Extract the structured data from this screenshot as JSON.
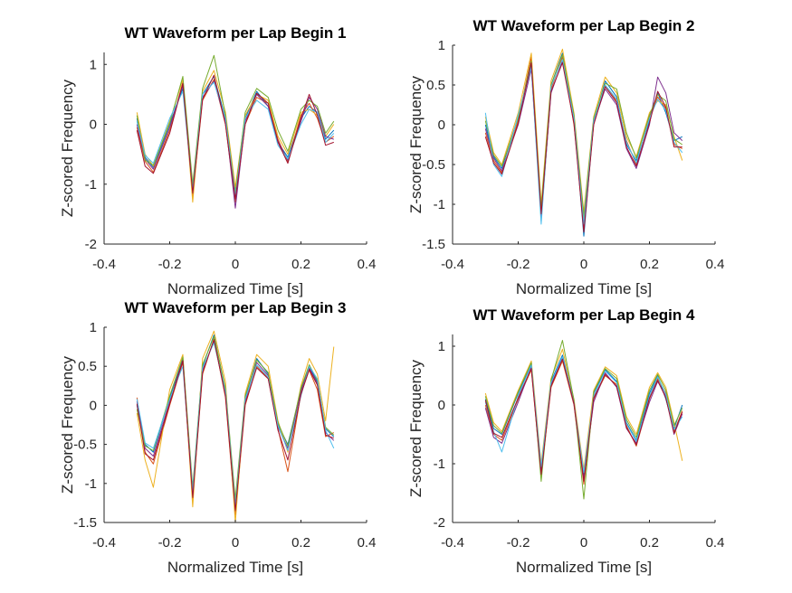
{
  "chart_data": [
    {
      "type": "line",
      "title": "WT Waveform per Lap Begin 1",
      "xlabel": "Normalized Time [s]",
      "ylabel": "Z-scored Frequency",
      "xlim": [
        -0.4,
        0.4
      ],
      "ylim": [
        -2,
        1.2
      ],
      "xticks": [
        -0.4,
        -0.2,
        0,
        0.2,
        0.4
      ],
      "yticks": [
        -2,
        -1,
        0,
        1
      ],
      "xtick_labels": [
        "-0.4",
        "-0.2",
        "0",
        "0.2",
        "0.4"
      ],
      "ytick_labels": [
        "-2",
        "-1",
        "0",
        "1"
      ],
      "x": [
        -0.3,
        -0.275,
        -0.25,
        -0.2,
        -0.16,
        -0.13,
        -0.1,
        -0.065,
        -0.03,
        0,
        0.03,
        0.065,
        0.1,
        0.13,
        0.16,
        0.2,
        0.225,
        0.25,
        0.275,
        0.3
      ],
      "series": [
        {
          "color": "#0072BD",
          "values": [
            0.1,
            -0.55,
            -0.72,
            0.0,
            0.6,
            -1.05,
            0.5,
            0.8,
            0.1,
            -1.1,
            0.1,
            0.55,
            0.3,
            -0.3,
            -0.55,
            0.1,
            0.3,
            0.2,
            -0.25,
            -0.1
          ]
        },
        {
          "color": "#D95319",
          "values": [
            -0.05,
            -0.62,
            -0.8,
            -0.1,
            0.7,
            -1.2,
            0.4,
            0.75,
            0.0,
            -1.3,
            0.0,
            0.45,
            0.35,
            -0.25,
            -0.62,
            0.15,
            0.35,
            0.1,
            -0.3,
            -0.2
          ]
        },
        {
          "color": "#EDB120",
          "values": [
            0.2,
            -0.5,
            -0.7,
            0.05,
            0.75,
            -1.3,
            0.55,
            0.9,
            0.2,
            -1.05,
            0.15,
            0.5,
            0.4,
            -0.2,
            -0.5,
            0.2,
            0.25,
            0.15,
            -0.2,
            0.0
          ]
        },
        {
          "color": "#7E2F8E",
          "values": [
            0.0,
            -0.58,
            -0.75,
            -0.05,
            0.65,
            -1.1,
            0.45,
            0.72,
            0.05,
            -1.4,
            0.05,
            0.5,
            0.3,
            -0.28,
            -0.6,
            0.05,
            0.45,
            0.25,
            -0.2,
            -0.25
          ]
        },
        {
          "color": "#77AC30",
          "values": [
            0.15,
            -0.6,
            -0.68,
            0.02,
            0.8,
            -1.0,
            0.6,
            1.15,
            0.15,
            -1.15,
            0.2,
            0.6,
            0.45,
            -0.1,
            -0.45,
            0.25,
            0.4,
            0.3,
            -0.15,
            0.05
          ]
        },
        {
          "color": "#4DBEEE",
          "values": [
            0.05,
            -0.52,
            -0.65,
            0.1,
            0.55,
            -1.1,
            0.5,
            0.7,
            0.1,
            -1.2,
            0.1,
            0.4,
            0.25,
            -0.35,
            -0.58,
            0.0,
            0.25,
            0.2,
            -0.3,
            -0.15
          ]
        },
        {
          "color": "#A2142F",
          "values": [
            -0.1,
            -0.7,
            -0.82,
            -0.15,
            0.68,
            -1.15,
            0.42,
            0.82,
            0.0,
            -1.25,
            0.0,
            0.52,
            0.35,
            -0.3,
            -0.65,
            0.1,
            0.5,
            0.15,
            -0.35,
            -0.3
          ]
        }
      ]
    },
    {
      "type": "line",
      "title": "WT Waveform per Lap Begin 2",
      "xlabel": "Normalized Time [s]",
      "ylabel": "Z-scored Frequency",
      "xlim": [
        -0.4,
        0.4
      ],
      "ylim": [
        -1.5,
        1
      ],
      "xticks": [
        -0.4,
        -0.2,
        0,
        0.2,
        0.4
      ],
      "yticks": [
        -1.5,
        -1,
        -0.5,
        0,
        0.5,
        1
      ],
      "xtick_labels": [
        "-0.4",
        "-0.2",
        "0",
        "0.2",
        "0.4"
      ],
      "ytick_labels": [
        "-1.5",
        "-1",
        "-0.5",
        "0",
        "0.5",
        "1"
      ],
      "x": [
        -0.3,
        -0.275,
        -0.25,
        -0.2,
        -0.16,
        -0.13,
        -0.1,
        -0.065,
        -0.03,
        0,
        0.03,
        0.065,
        0.1,
        0.13,
        0.16,
        0.2,
        0.225,
        0.25,
        0.275,
        0.3
      ],
      "series": [
        {
          "color": "#0072BD",
          "values": [
            0.0,
            -0.4,
            -0.55,
            0.1,
            0.75,
            -1.1,
            0.5,
            0.9,
            0.1,
            -1.4,
            0.05,
            0.55,
            0.35,
            -0.25,
            -0.45,
            0.05,
            0.4,
            0.15,
            -0.2,
            -0.15
          ]
        },
        {
          "color": "#D95319",
          "values": [
            -0.1,
            -0.45,
            -0.6,
            0.05,
            0.85,
            -1.2,
            0.45,
            0.85,
            0.0,
            -1.2,
            0.0,
            0.5,
            0.3,
            -0.2,
            -0.5,
            0.1,
            0.35,
            0.2,
            -0.25,
            -0.3
          ]
        },
        {
          "color": "#EDB120",
          "values": [
            0.1,
            -0.35,
            -0.5,
            0.15,
            0.9,
            -1.0,
            0.55,
            0.95,
            0.15,
            -1.1,
            0.1,
            0.6,
            0.4,
            -0.15,
            -0.4,
            0.15,
            0.3,
            0.25,
            -0.15,
            -0.45
          ]
        },
        {
          "color": "#7E2F8E",
          "values": [
            -0.05,
            -0.42,
            -0.58,
            0.0,
            0.7,
            -1.15,
            0.4,
            0.8,
            0.05,
            -1.3,
            0.02,
            0.45,
            0.25,
            -0.3,
            -0.55,
            0.0,
            0.6,
            0.4,
            -0.1,
            -0.2
          ]
        },
        {
          "color": "#77AC30",
          "values": [
            0.05,
            -0.38,
            -0.52,
            0.08,
            0.8,
            -1.05,
            0.5,
            0.88,
            0.12,
            -1.15,
            0.08,
            0.52,
            0.45,
            -0.1,
            -0.42,
            0.12,
            0.38,
            0.3,
            -0.18,
            -0.25
          ]
        },
        {
          "color": "#4DBEEE",
          "values": [
            0.15,
            -0.5,
            -0.65,
            0.12,
            0.72,
            -1.25,
            0.48,
            0.82,
            0.08,
            -1.25,
            0.05,
            0.5,
            0.32,
            -0.22,
            -0.48,
            0.08,
            0.32,
            0.18,
            -0.22,
            -0.35
          ]
        },
        {
          "color": "#A2142F",
          "values": [
            -0.15,
            -0.48,
            -0.62,
            0.02,
            0.78,
            -1.12,
            0.42,
            0.78,
            0.02,
            -1.35,
            0.0,
            0.48,
            0.28,
            -0.28,
            -0.52,
            0.02,
            0.42,
            0.22,
            -0.28,
            -0.28
          ]
        }
      ]
    },
    {
      "type": "line",
      "title": "WT Waveform per Lap Begin 3",
      "xlabel": "Normalized Time [s]",
      "ylabel": "Z-scored Frequency",
      "xlim": [
        -0.4,
        0.4
      ],
      "ylim": [
        -1.5,
        1
      ],
      "xticks": [
        -0.4,
        -0.2,
        0,
        0.2,
        0.4
      ],
      "yticks": [
        -1.5,
        -1,
        -0.5,
        0,
        0.5,
        1
      ],
      "xtick_labels": [
        "-0.4",
        "-0.2",
        "0",
        "0.2",
        "0.4"
      ],
      "ytick_labels": [
        "-1.5",
        "-1",
        "-0.5",
        "0",
        "0.5",
        "1"
      ],
      "x": [
        -0.3,
        -0.275,
        -0.25,
        -0.2,
        -0.16,
        -0.13,
        -0.1,
        -0.065,
        -0.03,
        0,
        0.03,
        0.065,
        0.1,
        0.13,
        0.16,
        0.2,
        0.225,
        0.25,
        0.275,
        0.3
      ],
      "series": [
        {
          "color": "#0072BD",
          "values": [
            0.0,
            -0.5,
            -0.6,
            0.1,
            0.6,
            -1.1,
            0.5,
            0.9,
            0.2,
            -1.3,
            0.1,
            0.6,
            0.4,
            -0.25,
            -0.5,
            0.2,
            0.5,
            0.3,
            -0.3,
            -0.4
          ]
        },
        {
          "color": "#D95319",
          "values": [
            0.1,
            -0.6,
            -0.75,
            0.0,
            0.55,
            -1.2,
            0.4,
            0.85,
            0.1,
            -1.4,
            0.0,
            0.5,
            0.35,
            -0.3,
            -0.85,
            0.15,
            0.45,
            0.2,
            -0.4,
            -0.35
          ]
        },
        {
          "color": "#EDB120",
          "values": [
            -0.1,
            -0.7,
            -1.05,
            0.2,
            0.65,
            -1.3,
            0.6,
            0.95,
            0.3,
            -1.5,
            0.15,
            0.65,
            0.5,
            -0.2,
            -0.6,
            0.25,
            0.6,
            0.4,
            -0.2,
            0.75
          ]
        },
        {
          "color": "#7E2F8E",
          "values": [
            0.05,
            -0.55,
            -0.65,
            0.05,
            0.58,
            -1.15,
            0.45,
            0.82,
            0.15,
            -1.25,
            0.05,
            0.55,
            0.38,
            -0.28,
            -0.55,
            0.18,
            0.48,
            0.28,
            -0.35,
            -0.45
          ]
        },
        {
          "color": "#77AC30",
          "values": [
            -0.05,
            -0.52,
            -0.58,
            0.12,
            0.62,
            -1.05,
            0.52,
            0.88,
            0.22,
            -1.2,
            0.12,
            0.58,
            0.42,
            -0.22,
            -0.52,
            0.22,
            0.52,
            0.32,
            -0.28,
            -0.38
          ]
        },
        {
          "color": "#4DBEEE",
          "values": [
            0.08,
            -0.48,
            -0.55,
            0.08,
            0.5,
            -1.1,
            0.48,
            0.8,
            0.18,
            -1.3,
            0.08,
            0.52,
            0.36,
            -0.26,
            -0.58,
            0.12,
            0.5,
            0.34,
            -0.32,
            -0.55
          ]
        },
        {
          "color": "#A2142F",
          "values": [
            0.02,
            -0.62,
            -0.7,
            0.02,
            0.57,
            -1.18,
            0.42,
            0.84,
            0.12,
            -1.35,
            0.02,
            0.48,
            0.34,
            -0.32,
            -0.7,
            0.14,
            0.46,
            0.26,
            -0.38,
            -0.42
          ]
        }
      ]
    },
    {
      "type": "line",
      "title": "WT Waveform per Lap Begin 4",
      "xlabel": "Normalized Time [s]",
      "ylabel": "Z-scored Frequency",
      "xlim": [
        -0.4,
        0.4
      ],
      "ylim": [
        -2,
        1.2
      ],
      "xticks": [
        -0.4,
        -0.2,
        0,
        0.2,
        0.4
      ],
      "yticks": [
        -2,
        -1,
        0,
        1
      ],
      "xtick_labels": [
        "-0.4",
        "-0.2",
        "0",
        "0.2",
        "0.4"
      ],
      "ytick_labels": [
        "-2",
        "-1",
        "0",
        "1"
      ],
      "x": [
        -0.3,
        -0.275,
        -0.25,
        -0.2,
        -0.16,
        -0.13,
        -0.1,
        -0.065,
        -0.03,
        0,
        0.03,
        0.065,
        0.1,
        0.13,
        0.16,
        0.2,
        0.225,
        0.25,
        0.275,
        0.3
      ],
      "series": [
        {
          "color": "#0072BD",
          "values": [
            0.1,
            -0.4,
            -0.5,
            0.2,
            0.7,
            -1.1,
            0.4,
            0.85,
            0.05,
            -1.2,
            0.2,
            0.6,
            0.4,
            -0.3,
            -0.6,
            0.2,
            0.5,
            0.1,
            -0.4,
            0.0
          ]
        },
        {
          "color": "#D95319",
          "values": [
            0.0,
            -0.5,
            -0.6,
            0.1,
            0.6,
            -1.2,
            0.3,
            0.75,
            0.0,
            -1.35,
            0.1,
            0.5,
            0.35,
            -0.35,
            -0.7,
            0.1,
            0.45,
            0.2,
            -0.45,
            -0.1
          ]
        },
        {
          "color": "#EDB120",
          "values": [
            0.2,
            -0.3,
            -0.45,
            0.25,
            0.75,
            -1.0,
            0.45,
            0.95,
            0.1,
            -1.1,
            0.25,
            0.65,
            0.5,
            -0.2,
            -0.5,
            0.3,
            0.55,
            0.3,
            -0.3,
            -0.95
          ]
        },
        {
          "color": "#7E2F8E",
          "values": [
            -0.05,
            -0.55,
            -0.65,
            0.05,
            0.65,
            -1.15,
            0.35,
            0.8,
            0.02,
            -1.25,
            0.05,
            0.55,
            0.3,
            -0.4,
            -0.65,
            0.05,
            0.4,
            0.15,
            -0.5,
            -0.15
          ]
        },
        {
          "color": "#77AC30",
          "values": [
            0.15,
            -0.35,
            -0.48,
            0.22,
            0.72,
            -1.3,
            0.42,
            1.1,
            0.08,
            -1.6,
            0.22,
            0.62,
            0.45,
            -0.25,
            -0.55,
            0.25,
            0.52,
            0.25,
            -0.35,
            -0.05
          ]
        },
        {
          "color": "#4DBEEE",
          "values": [
            0.05,
            -0.45,
            -0.8,
            0.15,
            0.68,
            -1.05,
            0.38,
            0.82,
            0.04,
            -1.15,
            0.15,
            0.58,
            0.38,
            -0.32,
            -0.62,
            0.15,
            0.48,
            0.18,
            -0.42,
            -0.2
          ]
        },
        {
          "color": "#A2142F",
          "values": [
            0.08,
            -0.48,
            -0.55,
            0.12,
            0.62,
            -1.18,
            0.32,
            0.78,
            0.03,
            -1.3,
            0.12,
            0.52,
            0.32,
            -0.38,
            -0.68,
            0.12,
            0.42,
            0.12,
            -0.48,
            -0.12
          ]
        }
      ]
    }
  ]
}
